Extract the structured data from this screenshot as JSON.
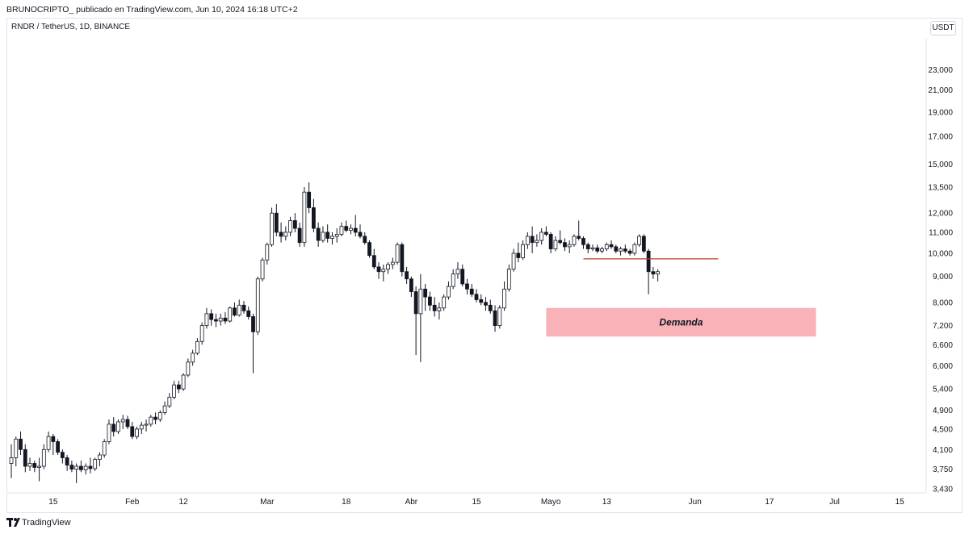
{
  "header": {
    "text": "BRUNOCRIPTO_ publicado en TradingView.com, Jun 10, 2024 16:18 UTC+2"
  },
  "symbol_label": "RNDR / TetherUS, 1D, BINANCE",
  "currency": "USDT",
  "footer": {
    "brand": "TradingView"
  },
  "colors": {
    "candle": "#131722",
    "zone": "#f8b2b8",
    "resistance_line": "#c0392b"
  },
  "chart_data": {
    "type": "candlestick",
    "title": "",
    "xlabel": "",
    "ylabel": "",
    "scale": "log",
    "ylim": [
      3.43,
      26.5
    ],
    "y_ticks": [
      "23,000",
      "21,000",
      "19,000",
      "17,000",
      "15,000",
      "13,500",
      "12,000",
      "11,000",
      "10,000",
      "9,000",
      "8,000",
      "7,200",
      "6,600",
      "6,000",
      "5,400",
      "4,900",
      "4,500",
      "4,100",
      "3,750",
      "3,430"
    ],
    "x_ticks": [
      "15",
      "Feb",
      "12",
      "Mar",
      "18",
      "Abr",
      "15",
      "Mayo",
      "13",
      "Jun",
      "17",
      "Jul",
      "15"
    ],
    "x_tick_dates": [
      "2024-01-15",
      "2024-02-01",
      "2024-02-12",
      "2024-03-01",
      "2024-03-18",
      "2024-04-01",
      "2024-04-15",
      "2024-05-01",
      "2024-05-13",
      "2024-06-01",
      "2024-06-17",
      "2024-07-01",
      "2024-07-15"
    ],
    "start_date": "2024-01-06",
    "ohlc": [
      [
        3.85,
        4.2,
        3.6,
        3.95
      ],
      [
        3.95,
        4.35,
        3.8,
        4.3
      ],
      [
        4.3,
        4.45,
        4.0,
        4.1
      ],
      [
        4.1,
        4.2,
        3.7,
        3.8
      ],
      [
        3.8,
        3.95,
        3.72,
        3.85
      ],
      [
        3.85,
        3.9,
        3.7,
        3.78
      ],
      [
        3.78,
        3.95,
        3.55,
        3.8
      ],
      [
        3.8,
        4.2,
        3.75,
        4.1
      ],
      [
        4.1,
        4.45,
        4.05,
        4.35
      ],
      [
        4.35,
        4.4,
        4.0,
        4.25
      ],
      [
        4.25,
        4.3,
        4.0,
        4.05
      ],
      [
        4.05,
        4.1,
        3.85,
        3.95
      ],
      [
        3.95,
        4.0,
        3.72,
        3.82
      ],
      [
        3.82,
        3.9,
        3.7,
        3.75
      ],
      [
        3.75,
        3.85,
        3.52,
        3.8
      ],
      [
        3.8,
        3.9,
        3.7,
        3.74
      ],
      [
        3.74,
        3.85,
        3.66,
        3.8
      ],
      [
        3.8,
        3.95,
        3.68,
        3.76
      ],
      [
        3.76,
        3.95,
        3.72,
        3.92
      ],
      [
        3.92,
        4.05,
        3.8,
        4.0
      ],
      [
        4.0,
        4.3,
        3.95,
        4.25
      ],
      [
        4.25,
        4.7,
        4.2,
        4.6
      ],
      [
        4.6,
        4.75,
        4.35,
        4.45
      ],
      [
        4.45,
        4.7,
        4.4,
        4.65
      ],
      [
        4.65,
        4.8,
        4.5,
        4.7
      ],
      [
        4.7,
        4.78,
        4.5,
        4.55
      ],
      [
        4.55,
        4.65,
        4.3,
        4.35
      ],
      [
        4.35,
        4.55,
        4.3,
        4.5
      ],
      [
        4.5,
        4.65,
        4.4,
        4.58
      ],
      [
        4.58,
        4.7,
        4.45,
        4.6
      ],
      [
        4.6,
        4.8,
        4.55,
        4.75
      ],
      [
        4.75,
        4.85,
        4.6,
        4.7
      ],
      [
        4.7,
        4.9,
        4.65,
        4.85
      ],
      [
        4.85,
        5.1,
        4.8,
        5.0
      ],
      [
        5.0,
        5.3,
        4.95,
        5.2
      ],
      [
        5.2,
        5.6,
        5.15,
        5.5
      ],
      [
        5.5,
        5.6,
        5.3,
        5.4
      ],
      [
        5.4,
        5.8,
        5.35,
        5.75
      ],
      [
        5.75,
        6.2,
        5.7,
        6.1
      ],
      [
        6.1,
        6.45,
        6.0,
        6.35
      ],
      [
        6.35,
        6.8,
        6.3,
        6.7
      ],
      [
        6.7,
        7.3,
        6.6,
        7.2
      ],
      [
        7.2,
        7.8,
        7.1,
        7.6
      ],
      [
        7.6,
        7.75,
        7.2,
        7.4
      ],
      [
        7.4,
        7.6,
        7.15,
        7.35
      ],
      [
        7.35,
        7.6,
        7.2,
        7.45
      ],
      [
        7.45,
        7.65,
        7.25,
        7.35
      ],
      [
        7.35,
        7.85,
        7.3,
        7.8
      ],
      [
        7.8,
        8.0,
        7.5,
        7.55
      ],
      [
        7.55,
        8.1,
        7.5,
        7.9
      ],
      [
        7.9,
        8.05,
        7.6,
        7.7
      ],
      [
        7.7,
        7.85,
        7.4,
        7.5
      ],
      [
        7.5,
        7.6,
        5.8,
        7.0
      ],
      [
        7.0,
        9.0,
        6.9,
        8.9
      ],
      [
        8.9,
        9.8,
        8.8,
        9.7
      ],
      [
        9.7,
        10.5,
        9.5,
        10.4
      ],
      [
        10.4,
        12.3,
        10.3,
        12.0
      ],
      [
        12.0,
        12.5,
        10.8,
        11.0
      ],
      [
        11.0,
        11.5,
        10.5,
        10.8
      ],
      [
        10.8,
        11.3,
        10.6,
        11.0
      ],
      [
        11.0,
        11.8,
        10.8,
        11.6
      ],
      [
        11.6,
        12.0,
        11.0,
        11.2
      ],
      [
        11.2,
        11.5,
        10.3,
        10.5
      ],
      [
        10.5,
        13.5,
        10.3,
        13.2
      ],
      [
        13.2,
        13.8,
        12.0,
        12.3
      ],
      [
        12.3,
        12.8,
        11.0,
        11.2
      ],
      [
        11.2,
        11.5,
        10.3,
        10.6
      ],
      [
        10.6,
        11.3,
        10.5,
        11.0
      ],
      [
        11.0,
        11.4,
        10.5,
        10.7
      ],
      [
        10.7,
        11.0,
        10.4,
        10.8
      ],
      [
        10.8,
        11.2,
        10.5,
        10.9
      ],
      [
        10.9,
        11.5,
        10.8,
        11.3
      ],
      [
        11.3,
        11.6,
        11.0,
        11.1
      ],
      [
        11.1,
        11.4,
        10.9,
        11.2
      ],
      [
        11.2,
        11.9,
        10.8,
        11.0
      ],
      [
        11.0,
        11.4,
        10.7,
        10.8
      ],
      [
        10.8,
        11.0,
        10.4,
        10.5
      ],
      [
        10.5,
        10.6,
        9.8,
        9.9
      ],
      [
        9.9,
        10.2,
        9.3,
        9.4
      ],
      [
        9.4,
        9.6,
        8.9,
        9.2
      ],
      [
        9.2,
        9.5,
        8.8,
        9.3
      ],
      [
        9.3,
        9.6,
        9.1,
        9.5
      ],
      [
        9.5,
        9.8,
        9.3,
        9.6
      ],
      [
        9.6,
        10.5,
        9.5,
        10.4
      ],
      [
        10.4,
        10.5,
        9.0,
        9.2
      ],
      [
        9.2,
        9.4,
        8.7,
        8.9
      ],
      [
        8.9,
        9.0,
        8.2,
        8.4
      ],
      [
        8.4,
        8.6,
        6.3,
        7.6
      ],
      [
        7.6,
        9.1,
        6.1,
        8.5
      ],
      [
        8.5,
        8.7,
        7.7,
        8.2
      ],
      [
        8.2,
        8.4,
        7.7,
        7.9
      ],
      [
        7.9,
        8.2,
        7.5,
        7.7
      ],
      [
        7.7,
        8.0,
        7.4,
        7.8
      ],
      [
        7.8,
        8.3,
        7.7,
        8.2
      ],
      [
        8.2,
        8.8,
        8.1,
        8.6
      ],
      [
        8.6,
        9.3,
        8.5,
        9.1
      ],
      [
        9.1,
        9.6,
        8.9,
        9.3
      ],
      [
        9.3,
        9.5,
        8.6,
        8.7
      ],
      [
        8.7,
        8.9,
        8.3,
        8.5
      ],
      [
        8.5,
        8.7,
        8.2,
        8.3
      ],
      [
        8.3,
        8.5,
        8.0,
        8.1
      ],
      [
        8.1,
        8.3,
        7.9,
        8.0
      ],
      [
        8.0,
        8.2,
        7.7,
        7.9
      ],
      [
        7.9,
        8.1,
        7.6,
        7.7
      ],
      [
        7.7,
        7.9,
        7.0,
        7.2
      ],
      [
        7.2,
        7.9,
        7.1,
        7.8
      ],
      [
        7.8,
        8.8,
        7.7,
        8.5
      ],
      [
        8.5,
        9.5,
        8.4,
        9.3
      ],
      [
        9.3,
        10.2,
        9.2,
        10.0
      ],
      [
        10.0,
        10.5,
        9.6,
        9.8
      ],
      [
        9.8,
        10.6,
        9.7,
        10.4
      ],
      [
        10.4,
        11.0,
        10.2,
        10.8
      ],
      [
        10.8,
        11.3,
        10.0,
        10.5
      ],
      [
        10.5,
        10.9,
        10.3,
        10.6
      ],
      [
        10.6,
        11.2,
        10.4,
        11.0
      ],
      [
        11.0,
        11.3,
        10.8,
        10.9
      ],
      [
        10.9,
        11.0,
        10.0,
        10.2
      ],
      [
        10.2,
        10.8,
        10.1,
        10.6
      ],
      [
        10.6,
        11.1,
        10.4,
        10.5
      ],
      [
        10.5,
        10.7,
        10.1,
        10.3
      ],
      [
        10.3,
        10.6,
        10.0,
        10.4
      ],
      [
        10.4,
        10.9,
        10.3,
        10.8
      ],
      [
        10.8,
        11.6,
        10.6,
        10.7
      ],
      [
        10.7,
        10.8,
        10.2,
        10.4
      ],
      [
        10.4,
        10.5,
        10.0,
        10.2
      ],
      [
        10.2,
        10.4,
        10.1,
        10.25
      ],
      [
        10.25,
        10.4,
        10.0,
        10.1
      ],
      [
        10.1,
        10.3,
        10.0,
        10.2
      ],
      [
        10.2,
        10.5,
        10.1,
        10.4
      ],
      [
        10.4,
        10.6,
        10.2,
        10.3
      ],
      [
        10.3,
        10.4,
        10.0,
        10.1
      ],
      [
        10.1,
        10.3,
        9.9,
        10.2
      ],
      [
        10.2,
        10.4,
        10.0,
        10.1
      ],
      [
        10.1,
        10.2,
        9.9,
        10.0
      ],
      [
        10.0,
        10.5,
        9.9,
        10.4
      ],
      [
        10.4,
        10.9,
        10.3,
        10.8
      ],
      [
        10.8,
        10.9,
        10.0,
        10.1
      ],
      [
        10.1,
        10.2,
        8.3,
        9.2
      ],
      [
        9.2,
        9.4,
        8.9,
        9.1
      ],
      [
        9.1,
        9.3,
        8.8,
        9.2
      ]
    ],
    "annotations": [
      {
        "type": "zone",
        "label": "Demanda",
        "y_range": [
          6.85,
          7.8
        ],
        "x_start": "2024-04-30",
        "x_end": "2024-06-27"
      },
      {
        "type": "line",
        "y": 9.75,
        "x_start": "2024-05-08",
        "x_end": "2024-06-06"
      }
    ]
  }
}
